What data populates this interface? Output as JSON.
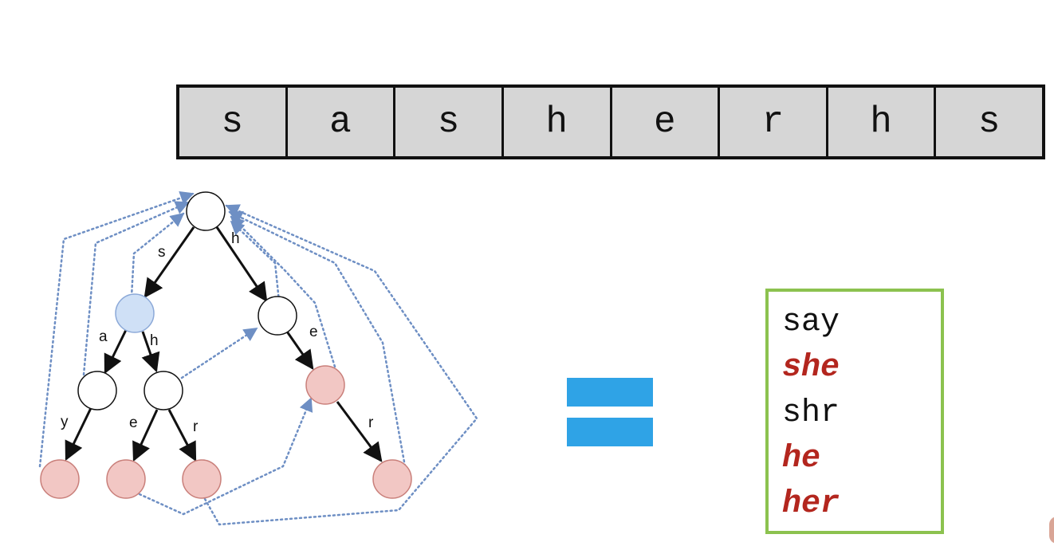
{
  "input_string": {
    "characters": [
      "s",
      "a",
      "s",
      "h",
      "e",
      "r",
      "h",
      "s"
    ]
  },
  "trie": {
    "colors": {
      "root": "#ffffff",
      "highlight": "#cfe0f6",
      "terminal": "#f2c7c4",
      "edge": "#111111",
      "fail_link": "#6e8fc4"
    },
    "edge_labels": {
      "root_s": "s",
      "root_h": "h",
      "s_a": "a",
      "s_h": "h",
      "sa_y": "y",
      "sh_e": "e",
      "sh_r": "r",
      "h_e": "e",
      "he_r": "r"
    }
  },
  "equals_sign": {
    "color": "#2fa3e6"
  },
  "result": {
    "border_color": "#8cc24f",
    "highlight_color": "#b3261e",
    "words": [
      {
        "text": "say",
        "highlighted": false
      },
      {
        "text": "she",
        "highlighted": true
      },
      {
        "text": "shr",
        "highlighted": false
      },
      {
        "text": "he",
        "highlighted": true
      },
      {
        "text": "her",
        "highlighted": true
      }
    ]
  }
}
